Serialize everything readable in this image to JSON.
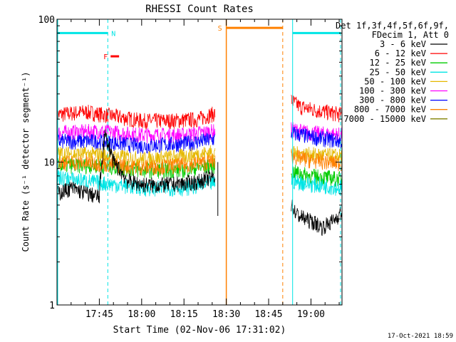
{
  "chart_data": {
    "type": "line",
    "title": "RHESSI Count Rates",
    "xlabel": "Start Time (02-Nov-06 17:31:02)",
    "ylabel": "Count Rate (s⁻¹ detector segment⁻¹)",
    "y_scale": "log",
    "ylim": [
      1,
      100
    ],
    "xlim_minutes_after_1731": [
      0,
      101
    ],
    "x_ticks": [
      {
        "t": 15,
        "label": "17:45"
      },
      {
        "t": 30,
        "label": "18:00"
      },
      {
        "t": 45,
        "label": "18:15"
      },
      {
        "t": 60,
        "label": "18:30"
      },
      {
        "t": 75,
        "label": "18:45"
      },
      {
        "t": 90,
        "label": "19:00"
      }
    ],
    "y_ticks": [
      {
        "v": 1,
        "label": "1"
      },
      {
        "v": 10,
        "label": "10"
      },
      {
        "v": 100,
        "label": "100"
      }
    ],
    "grid": false,
    "legend_position": "right",
    "legend_header": [
      "Det 1f,3f,4f,5f,6f,9f,",
      "FDecim 1, Att 0"
    ],
    "series": [
      {
        "name": "3 - 6 keV",
        "color": "#000000",
        "segments": [
          {
            "x": [
              0,
              5,
              10,
              15,
              17,
              20,
              25,
              30,
              35,
              40,
              45,
              50,
              56
            ],
            "y": [
              6.0,
              6.6,
              6.1,
              5.7,
              15.5,
              10,
              7.4,
              7.0,
              6.9,
              7.0,
              7.1,
              7.3,
              8.0
            ]
          },
          {
            "x": [
              83,
              85,
              88,
              91,
              94,
              98,
              101
            ],
            "y": [
              5.0,
              4.3,
              4.0,
              3.8,
              3.5,
              3.9,
              4.5
            ]
          }
        ]
      },
      {
        "name": "6 - 12 keV",
        "color": "#ff0000",
        "segments": [
          {
            "x": [
              0,
              10,
              20,
              30,
              40,
              50,
              56
            ],
            "y": [
              21.5,
              22.5,
              21.0,
              19.5,
              19.5,
              20.0,
              22.0
            ]
          },
          {
            "x": [
              83,
              86,
              90,
              95,
              101
            ],
            "y": [
              27,
              24.5,
              23.5,
              22.5,
              21.5
            ]
          }
        ]
      },
      {
        "name": "12 - 25 keV",
        "color": "#00cc00",
        "segments": [
          {
            "x": [
              0,
              15,
              30,
              45,
              56
            ],
            "y": [
              9.5,
              9.5,
              8.8,
              8.8,
              9.5
            ]
          },
          {
            "x": [
              83,
              90,
              101
            ],
            "y": [
              8.6,
              8.0,
              7.6
            ]
          }
        ]
      },
      {
        "name": "25 - 50 keV",
        "color": "#00e5e5",
        "segments": [
          {
            "x": [
              0,
              15,
              30,
              45,
              56
            ],
            "y": [
              7.8,
              7.2,
              6.6,
              6.6,
              7.2
            ]
          },
          {
            "x": [
              83,
              90,
              101
            ],
            "y": [
              7.4,
              7.0,
              6.6
            ]
          }
        ]
      },
      {
        "name": "50 - 100 keV",
        "color": "#e5b800",
        "segments": [
          {
            "x": [
              0,
              15,
              30,
              45,
              56
            ],
            "y": [
              11.5,
              11.3,
              10.5,
              11.0,
              11.8
            ]
          },
          {
            "x": [
              83,
              90,
              101
            ],
            "y": [
              11.5,
              11.3,
              11.0
            ]
          }
        ]
      },
      {
        "name": "100 - 300 keV",
        "color": "#ff00ff",
        "segments": [
          {
            "x": [
              0,
              15,
              30,
              45,
              56
            ],
            "y": [
              16.0,
              16.5,
              15.5,
              15.5,
              16.5
            ]
          },
          {
            "x": [
              83,
              90,
              101
            ],
            "y": [
              17.0,
              16.0,
              15.5
            ]
          }
        ]
      },
      {
        "name": "300 - 800 keV",
        "color": "#0000ff",
        "segments": [
          {
            "x": [
              0,
              15,
              30,
              45,
              56
            ],
            "y": [
              14.0,
              14.0,
              13.0,
              13.5,
              14.5
            ]
          },
          {
            "x": [
              83,
              90,
              101
            ],
            "y": [
              16.0,
              15.0,
              14.0
            ]
          }
        ]
      },
      {
        "name": "800 - 7000 keV",
        "color": "#ff8000",
        "segments": [
          {
            "x": [
              0,
              15,
              30,
              45,
              56
            ],
            "y": [
              10.0,
              9.8,
              9.2,
              9.5,
              10.2
            ]
          },
          {
            "x": [
              83,
              90,
              101
            ],
            "y": [
              11.0,
              10.3,
              9.8
            ]
          }
        ]
      },
      {
        "name": "7000 - 15000 keV",
        "color": "#808000",
        "segments": []
      }
    ],
    "annotations": {
      "night_start_lines": [
        {
          "t": 0
        },
        {
          "t": 83.5
        }
      ],
      "night_end_lines": [
        {
          "t": 18
        },
        {
          "t": 100.5
        }
      ],
      "night_bars": [
        {
          "t0": 0,
          "t1": 18,
          "value": 80,
          "label": "N"
        },
        {
          "t0": 83.5,
          "t1": 100.5,
          "value": 80
        }
      ],
      "flare_bar": {
        "t0": 19,
        "t1": 22,
        "value": 55,
        "label": "F"
      },
      "saa_line": {
        "t": 60
      },
      "saa_dashed": {
        "t": 80
      },
      "saa_bar": {
        "t0": 60,
        "t1": 80,
        "value": 87,
        "label": "S"
      },
      "spike": {
        "t": 57,
        "y_low": 4.2
      }
    },
    "timestamp": "17-Oct-2021 18:59"
  }
}
